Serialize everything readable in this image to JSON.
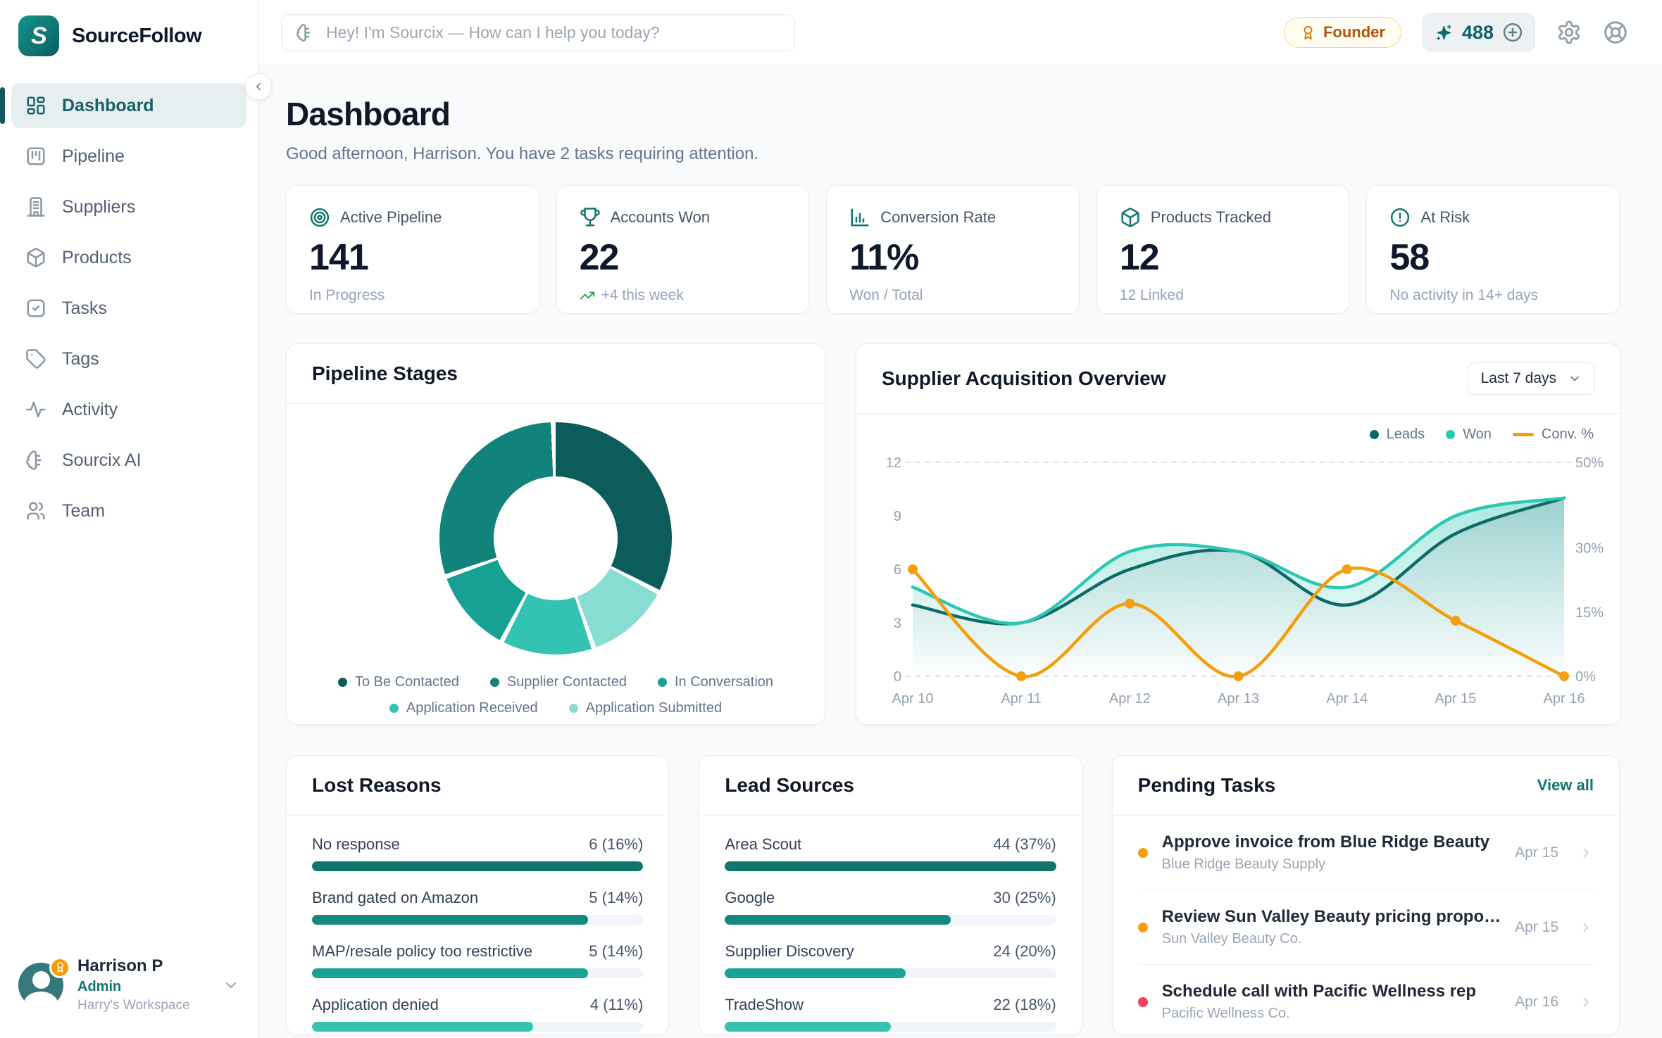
{
  "brand": {
    "name": "SourceFollow",
    "logo_letter": "S"
  },
  "topbar": {
    "search": {
      "placeholder": "Hey! I'm Sourcix — How can I help you today?",
      "icon": "sourcix-ai-icon"
    },
    "founder_badge": {
      "label": "Founder",
      "icon": "medal-icon"
    },
    "credits": {
      "value": "488",
      "icon": "sparkles-icon",
      "add_icon": "plus-circle-icon"
    },
    "icons": {
      "settings": "gear-icon",
      "help": "help-icon"
    }
  },
  "sidebar": {
    "items": [
      {
        "label": "Dashboard",
        "icon": "dashboard-icon",
        "active": true
      },
      {
        "label": "Pipeline",
        "icon": "pipeline-icon",
        "active": false
      },
      {
        "label": "Suppliers",
        "icon": "suppliers-icon",
        "active": false
      },
      {
        "label": "Products",
        "icon": "products-icon",
        "active": false
      },
      {
        "label": "Tasks",
        "icon": "tasks-icon",
        "active": false
      },
      {
        "label": "Tags",
        "icon": "tags-icon",
        "active": false
      },
      {
        "label": "Activity",
        "icon": "activity-icon",
        "active": false
      },
      {
        "label": "Sourcix AI",
        "icon": "sourcix-ai-icon",
        "active": false
      },
      {
        "label": "Team",
        "icon": "team-icon",
        "active": false
      }
    ],
    "collapse_icon": "chevron-left-icon",
    "user": {
      "name": "Harrison P",
      "role": "Admin",
      "workspace": "Harry's Workspace",
      "badge_icon": "medal-icon",
      "caret_icon": "chevron-down-icon"
    }
  },
  "page": {
    "title": "Dashboard",
    "greeting": "Good afternoon, Harrison. You have 2 tasks requiring attention."
  },
  "stats": [
    {
      "icon": "target-icon",
      "label": "Active Pipeline",
      "value": "141",
      "sub": "In Progress",
      "sub_icon": ""
    },
    {
      "icon": "trophy-icon",
      "label": "Accounts Won",
      "value": "22",
      "sub": "+4 this week",
      "sub_icon": "trend-up-icon"
    },
    {
      "icon": "bar-chart-icon",
      "label": "Conversion Rate",
      "value": "11%",
      "sub": "Won / Total",
      "sub_icon": ""
    },
    {
      "icon": "package-icon",
      "label": "Products Tracked",
      "value": "12",
      "sub": "12 Linked",
      "sub_icon": ""
    },
    {
      "icon": "alert-circle-icon",
      "label": "At Risk",
      "value": "58",
      "sub": "No activity in 14+ days",
      "sub_icon": ""
    }
  ],
  "acquisition_card": {
    "range_select": "Last 7 days",
    "select_caret_icon": "chevron-down-icon"
  },
  "pending_tasks": {
    "title": "Pending Tasks",
    "view_all": "View all",
    "arrow_icon": "chevron-right-icon",
    "items": [
      {
        "title": "Approve invoice from Blue Ridge Beauty",
        "company": "Blue Ridge Beauty Supply",
        "date": "Apr 15",
        "dot_color": "#f59e0b"
      },
      {
        "title": "Review Sun Valley Beauty pricing propo…",
        "company": "Sun Valley Beauty Co.",
        "date": "Apr 15",
        "dot_color": "#f59e0b"
      },
      {
        "title": "Schedule call with Pacific Wellness rep",
        "company": "Pacific Wellness Co.",
        "date": "Apr 16",
        "dot_color": "#f43f5e"
      }
    ]
  },
  "chart_data": [
    {
      "type": "pie",
      "title": "Pipeline Stages",
      "labels": [
        "To Be Contacted",
        "Supplier Contacted",
        "In Conversation",
        "Application Received",
        "Application Submitted"
      ],
      "values": [
        33,
        30,
        12,
        13,
        12
      ],
      "unit": "percent-of-pipeline",
      "colors": [
        "#0d5c5c",
        "#12837a",
        "#17a195",
        "#33c3b2",
        "#87ddd2"
      ],
      "draw_order": [
        0,
        4,
        3,
        2,
        1
      ],
      "donut_hole": 0.53,
      "legend_position": "bottom"
    },
    {
      "type": "line",
      "title": "Supplier Acquisition Overview",
      "x": [
        "Apr 10",
        "Apr 11",
        "Apr 12",
        "Apr 13",
        "Apr 14",
        "Apr 15",
        "Apr 16"
      ],
      "series": [
        {
          "name": "Leads",
          "axis": "left",
          "style": "area",
          "color": "#0e6a66",
          "values": [
            4,
            3,
            6,
            7,
            4,
            8,
            10
          ]
        },
        {
          "name": "Won",
          "axis": "left",
          "style": "area",
          "color": "#2cc7b2",
          "values": [
            5,
            3,
            7,
            7,
            5,
            9,
            10
          ]
        },
        {
          "name": "Conv. %",
          "axis": "right",
          "style": "line-points",
          "color": "#f59e0b",
          "values": [
            25,
            0,
            17,
            0,
            25,
            13,
            0
          ]
        }
      ],
      "left_axis": {
        "min": 0,
        "max": 12,
        "ticks": [
          12,
          9,
          6,
          3,
          0
        ]
      },
      "right_axis": {
        "min": 0,
        "max": 50,
        "ticks": [
          50,
          30,
          15,
          0
        ],
        "suffix": "%"
      },
      "grid": "dashed lines at top and bottom only",
      "legend_position": "top-right"
    },
    {
      "type": "bar",
      "title": "Lost Reasons",
      "categories": [
        "No response",
        "Brand gated on Amazon",
        "MAP/resale policy too restrictive",
        "Application denied"
      ],
      "values": [
        6,
        5,
        5,
        4
      ],
      "display": [
        "6 (16%)",
        "5 (14%)",
        "5 (14%)",
        "4 (11%)"
      ],
      "colors": [
        "#0f766e",
        "#12897e",
        "#17a496",
        "#36c3b1"
      ]
    },
    {
      "type": "bar",
      "title": "Lead Sources",
      "categories": [
        "Area Scout",
        "Google",
        "Supplier Discovery",
        "TradeShow"
      ],
      "values": [
        44,
        30,
        24,
        22
      ],
      "display": [
        "44 (37%)",
        "30 (25%)",
        "24 (20%)",
        "22 (18%)"
      ],
      "colors": [
        "#0f766e",
        "#12897e",
        "#17a496",
        "#36c3b1"
      ]
    }
  ]
}
